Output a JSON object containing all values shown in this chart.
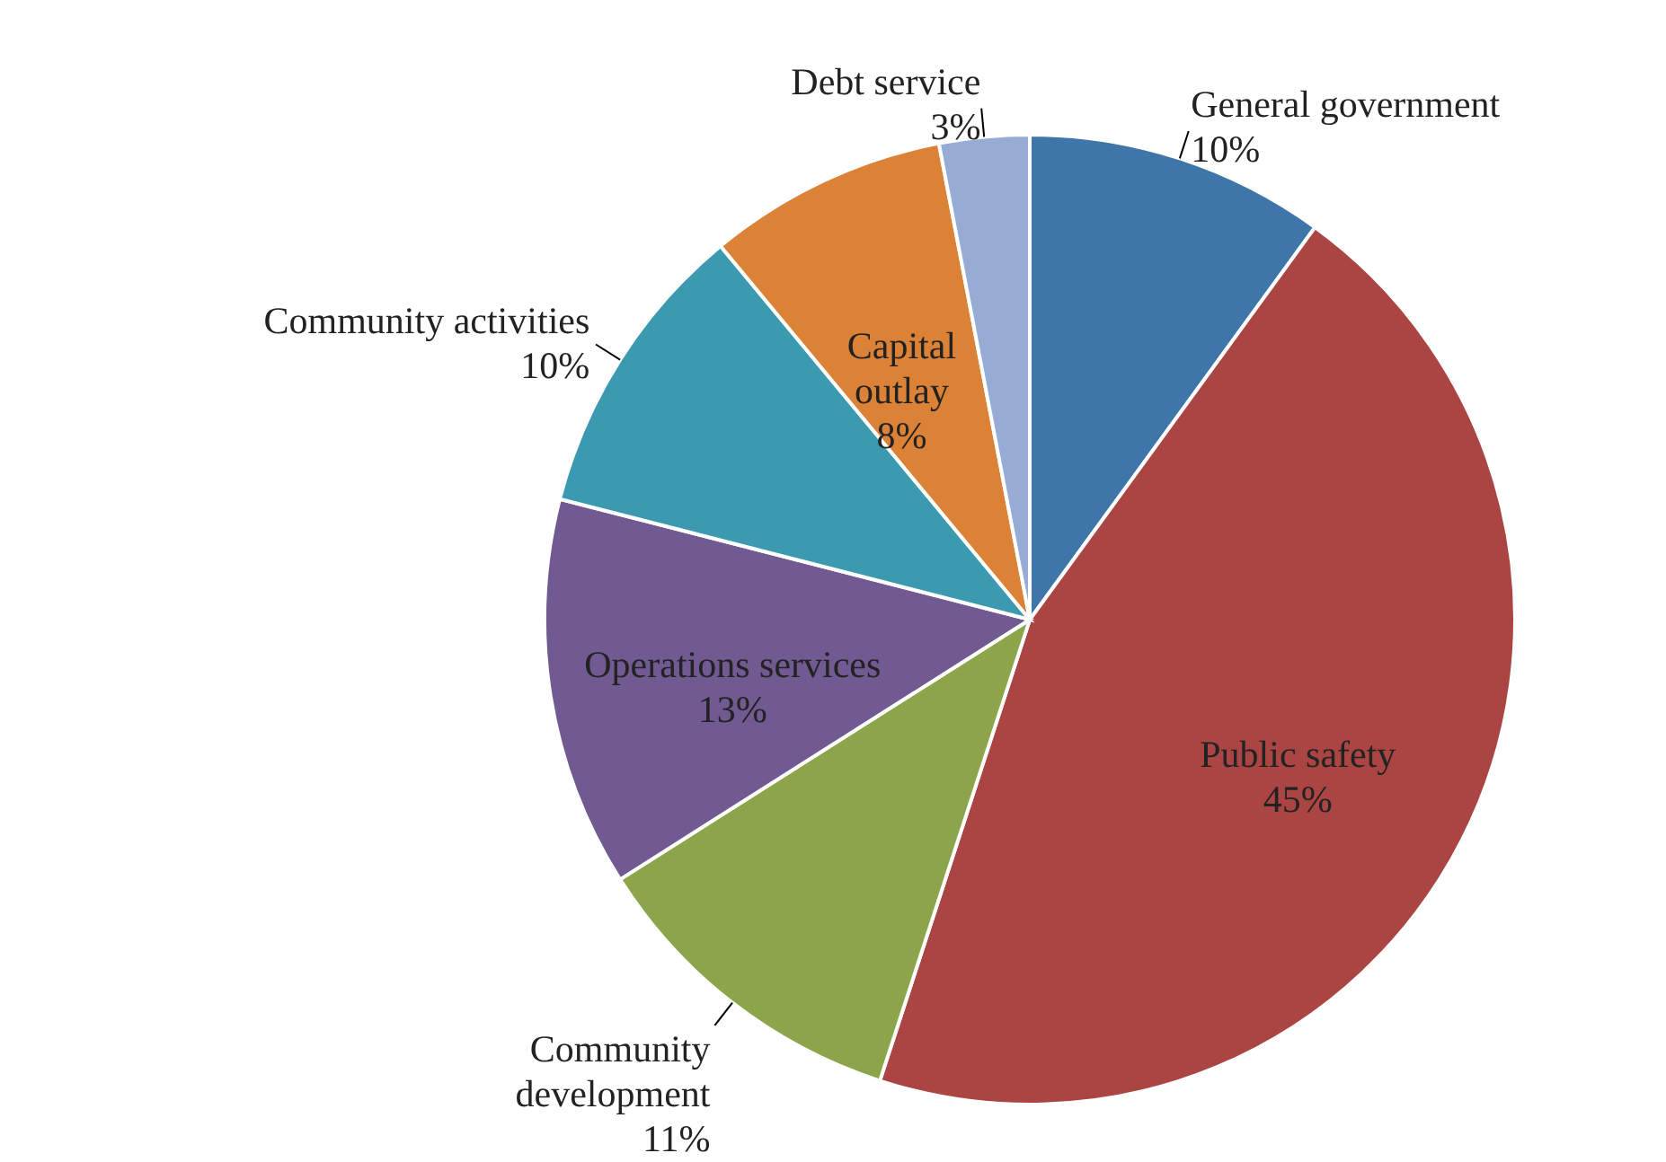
{
  "chart_data": {
    "type": "pie",
    "categories": [
      "General government",
      "Public safety",
      "Community development",
      "Operations services",
      "Community activities",
      "Capital outlay",
      "Debt service"
    ],
    "values": [
      10,
      45,
      11,
      13,
      10,
      8,
      3
    ],
    "value_labels": [
      "10%",
      "45%",
      "11%",
      "13%",
      "10%",
      "8%",
      "3%"
    ],
    "colors": [
      "#3f76aa",
      "#ab4543",
      "#8ca54b",
      "#705a91",
      "#3b99b0",
      "#dc8236",
      "#97acd4"
    ]
  }
}
